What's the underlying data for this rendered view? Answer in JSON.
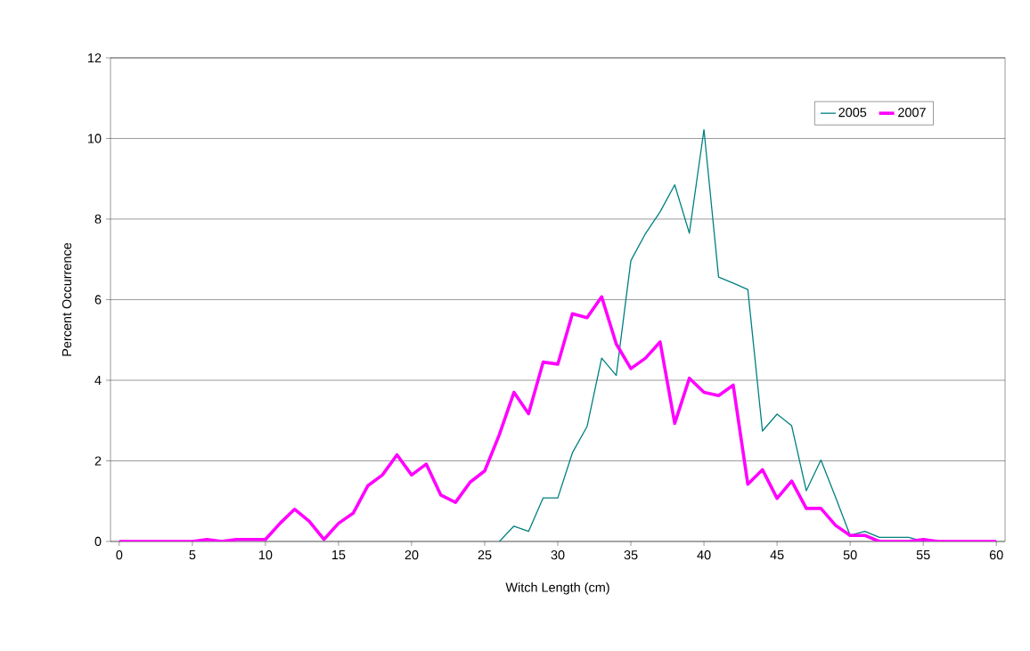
{
  "chart_data": {
    "type": "line",
    "xlabel": "Witch Length (cm)",
    "ylabel": "Percent Occurrence",
    "x": [
      0,
      1,
      2,
      3,
      4,
      5,
      6,
      7,
      8,
      9,
      10,
      11,
      12,
      13,
      14,
      15,
      16,
      17,
      18,
      19,
      20,
      21,
      22,
      23,
      24,
      25,
      26,
      27,
      28,
      29,
      30,
      31,
      32,
      33,
      34,
      35,
      36,
      37,
      38,
      39,
      40,
      41,
      42,
      43,
      44,
      45,
      46,
      47,
      48,
      49,
      50,
      51,
      52,
      53,
      54,
      55,
      56,
      57,
      58,
      59,
      60
    ],
    "series": [
      {
        "name": "2005",
        "color": "#008080",
        "values": [
          null,
          null,
          null,
          null,
          null,
          null,
          null,
          null,
          null,
          null,
          null,
          null,
          null,
          null,
          null,
          null,
          null,
          null,
          null,
          null,
          null,
          null,
          null,
          null,
          null,
          null,
          0,
          0.38,
          0.25,
          1.08,
          1.08,
          2.2,
          2.85,
          4.55,
          4.12,
          6.97,
          7.64,
          8.18,
          8.85,
          7.65,
          10.22,
          6.56,
          6.41,
          6.25,
          2.74,
          3.16,
          2.87,
          1.26,
          2.02,
          1.1,
          0.15,
          0.25,
          0.1,
          0.1,
          0.1,
          0,
          0,
          null,
          null,
          null,
          null
        ]
      },
      {
        "name": "2007",
        "color": "#ff00ff",
        "values": [
          0,
          0,
          0,
          0,
          0,
          0,
          0.05,
          0,
          0.05,
          0.05,
          0.05,
          0.45,
          0.8,
          0.5,
          0.05,
          0.45,
          0.7,
          1.38,
          1.65,
          2.15,
          1.65,
          1.92,
          1.15,
          0.97,
          1.47,
          1.75,
          2.65,
          3.7,
          3.17,
          4.45,
          4.4,
          5.65,
          5.55,
          6.07,
          4.9,
          4.29,
          4.55,
          4.95,
          2.93,
          4.05,
          3.7,
          3.62,
          3.88,
          1.42,
          1.78,
          1.07,
          1.5,
          0.82,
          0.82,
          0.4,
          0.15,
          0.15,
          0,
          0,
          0,
          0.05,
          0,
          0,
          0,
          0,
          0
        ]
      }
    ],
    "xlim": [
      -0.6,
      60.6
    ],
    "xticks": [
      0,
      5,
      10,
      15,
      20,
      25,
      30,
      35,
      40,
      45,
      50,
      55,
      60
    ],
    "ylim": [
      0,
      12
    ],
    "yticks": [
      0,
      2,
      4,
      6,
      8,
      10,
      12
    ],
    "grid": "y",
    "legend": "top right",
    "marker": "none",
    "line_style": "solid"
  }
}
